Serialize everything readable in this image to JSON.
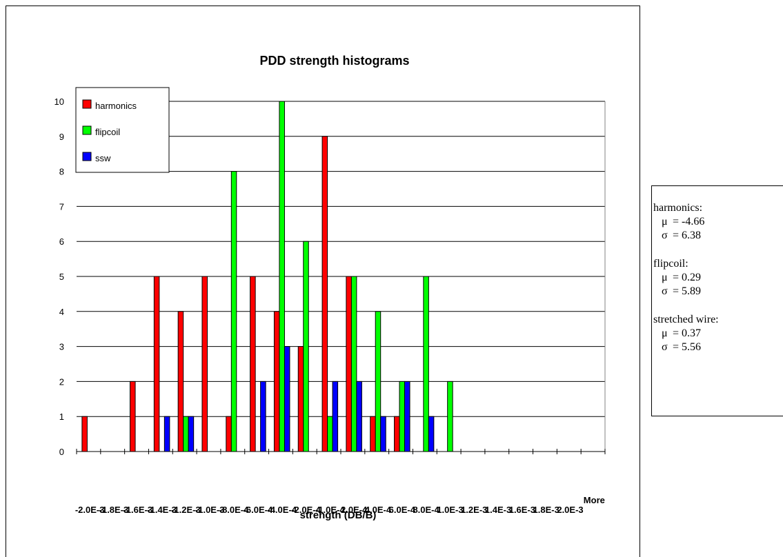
{
  "chart_data": {
    "type": "bar",
    "title": "PDD strength histograms",
    "xlabel": "strength (DB/B)",
    "ylabel": "",
    "ylim": [
      0,
      10
    ],
    "yticks": [
      0,
      1,
      2,
      3,
      4,
      5,
      6,
      7,
      8,
      9,
      10
    ],
    "grid": true,
    "legend_position": "top-left",
    "categories": [
      "-2.0E-3",
      "-1.8E-3",
      "-1.6E-3",
      "-1.4E-3",
      "-1.2E-3",
      "-1.0E-3",
      "-8.0E-4",
      "-6.0E-4",
      "-4.0E-4",
      "-2.0E-4",
      "-1.0E-4",
      "2.0E-4",
      "4.0E-4",
      "6.0E-4",
      "8.0E-4",
      "1.0E-3",
      "1.2E-3",
      "1.4E-3",
      "1.6E-3",
      "1.8E-3",
      "2.0E-3",
      "More"
    ],
    "tick_labels": [
      "-2.0E-3",
      "-1.8E-3",
      "-1.6E-3",
      "-1.4E-3",
      "-1.2E-3",
      "-1.0E-3",
      "-8.0E-4",
      "-6.0E-4",
      "-4.0E-4",
      "-2.0E-4",
      "-1.0E-4",
      "2.0E-4",
      "4.0E-4",
      "6.0E-4",
      "8.0E-4",
      "1.0E-3",
      "1.2E-3",
      "1.4E-3",
      "1.6E-3",
      "1.8E-3",
      "2.0E-3",
      "More"
    ],
    "series": [
      {
        "name": "harmonics",
        "color": "#ff0000",
        "values": [
          1,
          0,
          2,
          5,
          4,
          5,
          1,
          5,
          4,
          3,
          9,
          5,
          1,
          1,
          0,
          0,
          0,
          0,
          0,
          0,
          0,
          0
        ]
      },
      {
        "name": "flipcoil",
        "color": "#00ff00",
        "values": [
          0,
          0,
          0,
          0,
          1,
          0,
          8,
          0,
          10,
          6,
          1,
          5,
          4,
          2,
          5,
          2,
          0,
          0,
          0,
          0,
          0,
          0
        ]
      },
      {
        "name": "ssw",
        "color": "#0000ff",
        "values": [
          0,
          0,
          0,
          1,
          1,
          0,
          0,
          2,
          3,
          0,
          2,
          2,
          1,
          2,
          1,
          0,
          0,
          0,
          0,
          0,
          0,
          0
        ]
      }
    ]
  },
  "stats": {
    "harmonics": {
      "label": "harmonics:",
      "mu": "= -4.66",
      "sigma": "= 6.38"
    },
    "flipcoil": {
      "label": "flipcoil:",
      "mu": "= 0.29",
      "sigma": "= 5.89"
    },
    "stretched": {
      "label": "stretched wire:",
      "mu": "= 0.37",
      "sigma": "= 5.56"
    },
    "mu_symbol": "μ",
    "sigma_symbol": "σ"
  }
}
